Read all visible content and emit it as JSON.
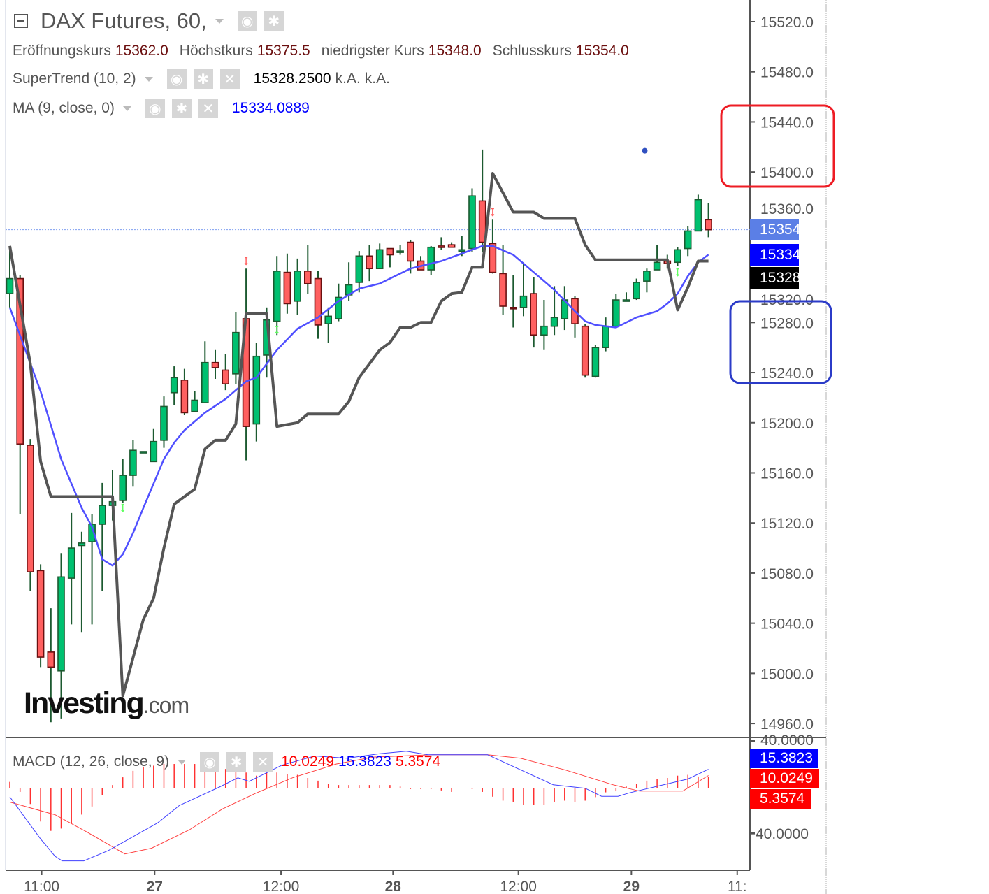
{
  "header": {
    "title": "DAX Futures, 60,",
    "ohlc": [
      {
        "label": "Eröffnungskurs",
        "value": "15362.0"
      },
      {
        "label": "Höchstkurs",
        "value": "15375.5"
      },
      {
        "label": "niedrigster Kurs",
        "value": "15348.0"
      },
      {
        "label": "Schlusskurs",
        "value": "15354.0"
      }
    ],
    "supertrend": {
      "label": "SuperTrend (10, 2)",
      "value": "15328.2500",
      "extra1": "k.A.",
      "extra2": "k.A."
    },
    "ma": {
      "label": "MA (9, close, 0)",
      "value": "15334.0889"
    },
    "macd": {
      "label": "MACD (12, 26, close, 9)",
      "signal": "10.0249",
      "macd": "15.3823",
      "hist": "5.3574"
    }
  },
  "logo": {
    "main": "Investing",
    "suffix": ".com"
  },
  "price_tags": [
    {
      "text": "15354.0",
      "color": "#5b7fe6"
    },
    {
      "text": "15334.1",
      "color": "#0000ff"
    },
    {
      "text": "15328.3",
      "color": "#000000"
    }
  ],
  "macd_tags": [
    {
      "text": "15.3823",
      "color": "#0000ff"
    },
    {
      "text": "10.0249",
      "color": "#ff0000"
    },
    {
      "text": "5.3574",
      "color": "#ff0000"
    }
  ],
  "annotations": [
    {
      "shape": "rounded-rectangle",
      "color": "#ee1c24",
      "range": [
        15400,
        15440
      ]
    },
    {
      "shape": "rounded-rectangle",
      "color": "#2b3bc8",
      "range": [
        15240,
        15280
      ]
    }
  ],
  "icons": [
    "collapse-icon",
    "dropdown-icon",
    "eye-icon",
    "gear-icon",
    "close-icon"
  ],
  "chart_data": [
    {
      "type": "candlestick",
      "colors": {
        "up": "#00c070",
        "down": "#ff6060",
        "ma": "#5050ff",
        "supertrend": "#555555",
        "last_price_line": "#7f9ff0"
      },
      "ylim": [
        14950,
        15540
      ],
      "yticks": [
        "15520.0",
        "15480.0",
        "15440.0",
        "15400.0",
        "15360.0",
        "15320.0",
        "15280.0",
        "15240.0",
        "15200.0",
        "15160.0",
        "15120.0",
        "15080.0",
        "15040.0",
        "15000.0",
        "14960.0"
      ],
      "xticks": [
        {
          "label": "11:00",
          "at": 3.1,
          "bold": false
        },
        {
          "label": "27",
          "at": 14.1,
          "bold": true
        },
        {
          "label": "12:00",
          "at": 26.4,
          "bold": false
        },
        {
          "label": "28",
          "at": 37.3,
          "bold": true
        },
        {
          "label": "12:00",
          "at": 49.5,
          "bold": false
        },
        {
          "label": "29",
          "at": 60.5,
          "bold": true
        },
        {
          "label": "11:",
          "at": 70.8,
          "bold": false
        }
      ],
      "last_price": 15354.0,
      "candles": [
        [
          15303,
          15341,
          15292,
          15315
        ],
        [
          15315,
          15318,
          15127,
          15183
        ],
        [
          15182,
          15187,
          15066,
          15081
        ],
        [
          15082,
          15087,
          15005,
          15013
        ],
        [
          15017,
          15052,
          14961,
          15005
        ],
        [
          15002,
          15096,
          14964,
          15077
        ],
        [
          15076,
          15128,
          15039,
          15100
        ],
        [
          15102,
          15113,
          15033,
          15104
        ],
        [
          15105,
          15127,
          15039,
          15119
        ],
        [
          15119,
          15152,
          15066,
          15134
        ],
        [
          15134,
          15162,
          15122,
          15137
        ],
        [
          15138,
          15171,
          15136,
          15158
        ],
        [
          15158,
          15186,
          15149,
          15178
        ],
        [
          15177,
          15177,
          15177,
          15177
        ],
        [
          15169,
          15195,
          15174,
          15185
        ],
        [
          15186,
          15221,
          15180,
          15213
        ],
        [
          15224,
          15245,
          15214,
          15236
        ],
        [
          15234,
          15243,
          15206,
          15208
        ],
        [
          15209,
          15225,
          15209,
          15218
        ],
        [
          15216,
          15265,
          15216,
          15248
        ],
        [
          15248,
          15258,
          15235,
          15244
        ],
        [
          15242,
          15255,
          15226,
          15231
        ],
        [
          15239,
          15288,
          15231,
          15272
        ],
        [
          15283,
          15323,
          15170,
          15197
        ],
        [
          15199,
          15264,
          15185,
          15253
        ],
        [
          15254,
          15292,
          15236,
          15282
        ],
        [
          15281,
          15333,
          15270,
          15321
        ],
        [
          15320,
          15335,
          15287,
          15295
        ],
        [
          15297,
          15331,
          15286,
          15321
        ],
        [
          15321,
          15342,
          15303,
          15311
        ],
        [
          15315,
          15321,
          15267,
          15278
        ],
        [
          15279,
          15292,
          15264,
          15285
        ],
        [
          15283,
          15311,
          15281,
          15300
        ],
        [
          15302,
          15328,
          15297,
          15310
        ],
        [
          15312,
          15337,
          15304,
          15333
        ],
        [
          15333,
          15342,
          15313,
          15323
        ],
        [
          15323,
          15343,
          15323,
          15338
        ],
        [
          15339,
          15339,
          15324,
          15334
        ],
        [
          15336,
          15342,
          15334,
          15337
        ],
        [
          15344,
          15346,
          15319,
          15329
        ],
        [
          15329,
          15333,
          15322,
          15322
        ],
        [
          15322,
          15341,
          15318,
          15340
        ],
        [
          15341,
          15348,
          15338,
          15340
        ],
        [
          15342,
          15344,
          15340,
          15340
        ],
        [
          15338,
          15349,
          15333,
          15338
        ],
        [
          15339,
          15387,
          15336,
          15381
        ],
        [
          15377,
          15418,
          15336,
          15344
        ],
        [
          15343,
          15362,
          15319,
          15320
        ],
        [
          15319,
          15342,
          15286,
          15293
        ],
        [
          15292,
          15318,
          15276,
          15291
        ],
        [
          15292,
          15328,
          15285,
          15301
        ],
        [
          15303,
          15316,
          15260,
          15270
        ],
        [
          15270,
          15298,
          15258,
          15277
        ],
        [
          15277,
          15309,
          15270,
          15284
        ],
        [
          15283,
          15309,
          15274,
          15298
        ],
        [
          15299,
          15301,
          15268,
          15279
        ],
        [
          15277,
          15279,
          15236,
          15238
        ],
        [
          15237,
          15262,
          15236,
          15260
        ],
        [
          15260,
          15284,
          15257,
          15277
        ],
        [
          15277,
          15303,
          15277,
          15298
        ],
        [
          15298,
          15304,
          15298,
          15298
        ],
        [
          15299,
          15315,
          15298,
          15312
        ],
        [
          15313,
          15323,
          15304,
          15321
        ],
        [
          15322,
          15342,
          15322,
          15328
        ],
        [
          15329,
          15334,
          15323,
          15327
        ],
        [
          15328,
          15340,
          15325,
          15338
        ],
        [
          15339,
          15357,
          15333,
          15353
        ],
        [
          15353,
          15382,
          15353,
          15378
        ],
        [
          15362,
          15375.5,
          15348,
          15354
        ]
      ],
      "candle_fields": [
        "open",
        "high",
        "low",
        "close"
      ],
      "ma": [
        [
          0,
          15292
        ],
        [
          3,
          15225
        ],
        [
          5,
          15171
        ],
        [
          7,
          15132
        ],
        [
          8,
          15117
        ],
        [
          9,
          15091
        ],
        [
          10,
          15086
        ],
        [
          11,
          15095
        ],
        [
          12,
          15112
        ],
        [
          13,
          15132
        ],
        [
          15,
          15171
        ],
        [
          16,
          15184
        ],
        [
          17,
          15194
        ],
        [
          19,
          15208
        ],
        [
          21,
          15219
        ],
        [
          23,
          15233
        ],
        [
          24,
          15236
        ],
        [
          25,
          15247
        ],
        [
          26,
          15258
        ],
        [
          28,
          15275
        ],
        [
          30,
          15284
        ],
        [
          32,
          15297
        ],
        [
          34,
          15307
        ],
        [
          36,
          15311
        ],
        [
          39,
          15323
        ],
        [
          42,
          15329
        ],
        [
          44,
          15335
        ],
        [
          46,
          15341
        ],
        [
          47,
          15341
        ],
        [
          49,
          15334
        ],
        [
          51,
          15320
        ],
        [
          53,
          15306
        ],
        [
          55,
          15289
        ],
        [
          56,
          15281
        ],
        [
          57,
          15278
        ],
        [
          59,
          15276
        ],
        [
          61,
          15284
        ],
        [
          63,
          15289
        ],
        [
          64,
          15295
        ],
        [
          65,
          15303
        ],
        [
          66,
          15317
        ],
        [
          67,
          15328
        ],
        [
          68,
          15334.1
        ]
      ],
      "supertrend": [
        [
          0,
          15341
        ],
        [
          2,
          15247
        ],
        [
          3,
          15169
        ],
        [
          4,
          15141
        ],
        [
          10,
          15141
        ],
        [
          11,
          14982
        ],
        [
          13,
          15043
        ],
        [
          14,
          15060
        ],
        [
          15,
          15100
        ],
        [
          16,
          15135
        ],
        [
          18,
          15147
        ],
        [
          19,
          15179
        ],
        [
          20,
          15186
        ],
        [
          21,
          15186
        ],
        [
          22,
          15199
        ],
        [
          23,
          15287
        ],
        [
          25,
          15287
        ],
        [
          26,
          15197
        ],
        [
          28,
          15200
        ],
        [
          29,
          15207
        ],
        [
          32,
          15207
        ],
        [
          33,
          15217
        ],
        [
          34,
          15236
        ],
        [
          36,
          15258
        ],
        [
          37,
          15264
        ],
        [
          38,
          15276
        ],
        [
          39,
          15276
        ],
        [
          40,
          15280
        ],
        [
          41,
          15280
        ],
        [
          42,
          15297
        ],
        [
          43,
          15303
        ],
        [
          44,
          15304
        ],
        [
          45,
          15324
        ],
        [
          46,
          15324
        ],
        [
          47,
          15399
        ],
        [
          49,
          15368
        ],
        [
          51,
          15368
        ],
        [
          52,
          15363
        ],
        [
          55,
          15363
        ],
        [
          56,
          15342
        ],
        [
          57,
          15330
        ],
        [
          64,
          15330
        ],
        [
          65,
          15290
        ],
        [
          66,
          15308
        ],
        [
          67,
          15329
        ],
        [
          68,
          15329
        ]
      ],
      "signals": [
        {
          "at": 11,
          "price": 15132,
          "dir": "up",
          "color": "#60ff60"
        },
        {
          "at": 23,
          "price": 15329,
          "dir": "down",
          "color": "#ff6060"
        },
        {
          "at": 26,
          "price": 15274,
          "dir": "up",
          "color": "#60ff60"
        },
        {
          "at": 47,
          "price": 15368,
          "dir": "down",
          "color": "#ff6060"
        },
        {
          "at": 65,
          "price": 15320,
          "dir": "up",
          "color": "#60ff60"
        }
      ],
      "marker": {
        "at": 61.8,
        "price": 15417,
        "color": "#3050c0"
      }
    },
    {
      "type": "macd",
      "yticks": [
        "40.0000",
        "-40.0000"
      ],
      "yvalues": [
        40,
        -40
      ],
      "macd_line": [
        [
          0,
          -8.5
        ],
        [
          3,
          -45
        ],
        [
          4.4,
          -60
        ],
        [
          5.1,
          -64
        ],
        [
          7.2,
          -64
        ],
        [
          9.6,
          -55
        ],
        [
          14.4,
          -31
        ],
        [
          16.5,
          -16
        ],
        [
          20.4,
          0
        ],
        [
          22.2,
          8
        ],
        [
          23.3,
          5
        ],
        [
          26.5,
          19
        ],
        [
          29.7,
          27
        ],
        [
          32.8,
          25
        ],
        [
          36,
          29
        ],
        [
          38.6,
          31
        ],
        [
          40.7,
          28
        ],
        [
          46.5,
          28
        ],
        [
          49.7,
          15
        ],
        [
          52.9,
          2
        ],
        [
          56,
          -1
        ],
        [
          57.6,
          -8
        ],
        [
          59.2,
          -8
        ],
        [
          60.3,
          -5
        ],
        [
          66,
          7
        ],
        [
          68,
          15.38
        ]
      ],
      "signal_line": [
        [
          0,
          -13
        ],
        [
          4.4,
          -24
        ],
        [
          7.5,
          -39
        ],
        [
          11.2,
          -58
        ],
        [
          13.8,
          -53
        ],
        [
          17.5,
          -37
        ],
        [
          20.7,
          -19
        ],
        [
          23.9,
          -5.5
        ],
        [
          27.5,
          8
        ],
        [
          31.8,
          20
        ],
        [
          35.4,
          26
        ],
        [
          41.2,
          28
        ],
        [
          46.5,
          28
        ],
        [
          49.7,
          25
        ],
        [
          54,
          15
        ],
        [
          58.7,
          2
        ],
        [
          61.3,
          -3.5
        ],
        [
          65.5,
          -3.5
        ],
        [
          68,
          10.02
        ]
      ],
      "histogram": [
        2.8,
        -2.0,
        -7.8,
        -16.2,
        -20.7,
        -19.6,
        -16.8,
        -12.9,
        -9.0,
        -3.4,
        1.3,
        5.0,
        8.1,
        10.1,
        10.6,
        11.4,
        11.4,
        11.4,
        11.4,
        10.9,
        10.1,
        9.0,
        8.4,
        7.3,
        5.8,
        7.3,
        7.3,
        6.7,
        6.2,
        4.7,
        3.4,
        1.9,
        1.3,
        1.3,
        1.3,
        1.3,
        1.3,
        1.3,
        0.6,
        -0.6,
        -0.6,
        -0.6,
        -1.3,
        -2.0,
        0,
        -0.6,
        -2.0,
        -4.3,
        -6.2,
        -6.7,
        -8.1,
        -8.1,
        -8.1,
        -6.7,
        -6.2,
        -6.7,
        -6.2,
        -4.5,
        -2.2,
        -1.7,
        0.6,
        2.0,
        3.4,
        4.3,
        4.7,
        5.8,
        6.2,
        5.4,
        5.36
      ],
      "colors": {
        "macd": "#4040ff",
        "signal": "#ff4040",
        "histogram": "#ff3030"
      }
    }
  ]
}
